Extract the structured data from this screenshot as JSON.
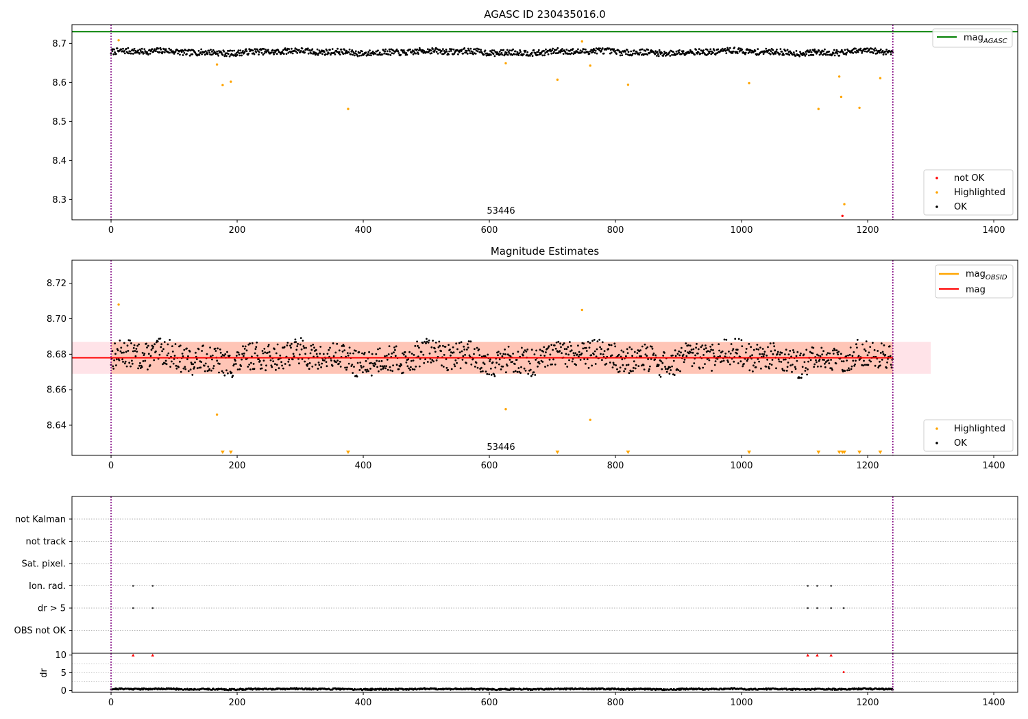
{
  "chart_data": [
    {
      "type": "scatter",
      "title": "AGASC ID 230435016.0",
      "xlim": [
        -62,
        1438
      ],
      "ylim": [
        8.248,
        8.748
      ],
      "xticks": [
        0,
        200,
        400,
        600,
        800,
        1000,
        1200,
        1400
      ],
      "yticks": [
        8.3,
        8.4,
        8.5,
        8.6,
        8.7
      ],
      "annotation": "53446",
      "vlines": [
        0,
        1240
      ],
      "hlines": [
        {
          "name": "mag_AGASC",
          "y": 8.73,
          "color": "#008000"
        }
      ],
      "legend_lines": [
        {
          "label": "mag",
          "sub": "AGASC",
          "color": "#008000"
        }
      ],
      "legend_points": [
        {
          "label": "not OK",
          "color": "#ff0000"
        },
        {
          "label": "Highlighted",
          "color": "#ffa500"
        },
        {
          "label": "OK",
          "color": "#000000"
        }
      ],
      "series": [
        {
          "name": "OK",
          "color": "#000000",
          "count": 1240,
          "x_range": [
            0,
            1240
          ],
          "baseline": 8.678,
          "scatter": 0.011
        },
        {
          "name": "Highlighted",
          "color": "#ffa500",
          "x": [
            12,
            168,
            177,
            190,
            376,
            626,
            708,
            747,
            760,
            820,
            1012,
            1122,
            1155,
            1158,
            1163,
            1187,
            1220
          ],
          "y": [
            8.708,
            8.646,
            8.593,
            8.602,
            8.532,
            8.649,
            8.607,
            8.705,
            8.643,
            8.594,
            8.598,
            8.532,
            8.615,
            8.563,
            8.288,
            8.535,
            8.611
          ]
        },
        {
          "name": "not OK",
          "color": "#ff0000",
          "x": [
            1160
          ],
          "y": [
            8.258
          ]
        }
      ]
    },
    {
      "type": "scatter",
      "title": "Magnitude Estimates",
      "xlim": [
        -62,
        1438
      ],
      "ylim": [
        8.623,
        8.733
      ],
      "xticks": [
        0,
        200,
        400,
        600,
        800,
        1000,
        1200,
        1400
      ],
      "yticks": [
        8.64,
        8.66,
        8.68,
        8.7,
        8.72
      ],
      "annotation": "53446",
      "vlines": [
        0,
        1240
      ],
      "bands": [
        {
          "name": "mag_OBSID range",
          "x": [
            -62,
            1300
          ],
          "y": [
            8.669,
            8.687
          ],
          "color": "#ffc0cb"
        },
        {
          "name": "mag_OBSID range",
          "x": [
            0,
            1240
          ],
          "y": [
            8.669,
            8.687
          ],
          "color": "#ffa07a"
        }
      ],
      "hlines": [
        {
          "name": "mag",
          "y": 8.678,
          "color": "#ff0000",
          "x": [
            -62,
            1240
          ]
        }
      ],
      "legend_lines": [
        {
          "label": "mag",
          "sub": "OBSID",
          "color": "#ffa500"
        },
        {
          "label": "mag",
          "sub": "",
          "color": "#ff0000"
        }
      ],
      "legend_points": [
        {
          "label": "Highlighted",
          "color": "#ffa500"
        },
        {
          "label": "OK",
          "color": "#000000"
        }
      ],
      "out_of_range_markers_x": [
        177,
        190,
        376,
        708,
        820,
        1012,
        1122,
        1155,
        1160,
        1163,
        1187,
        1220
      ],
      "series": [
        {
          "name": "OK",
          "color": "#000000",
          "count": 1240,
          "x_range": [
            0,
            1240
          ],
          "baseline": 8.678,
          "scatter": 0.011
        },
        {
          "name": "Highlighted",
          "color": "#ffa500",
          "x": [
            12,
            168,
            626,
            747,
            760
          ],
          "y": [
            8.708,
            8.646,
            8.649,
            8.705,
            8.643
          ]
        }
      ]
    },
    {
      "type": "scatter",
      "title": "",
      "xlim": [
        -62,
        1438
      ],
      "categories": [
        "not Kalman",
        "not track",
        "Sat. pixel.",
        "Ion. rad.",
        "dr > 5",
        "OBS not OK"
      ],
      "vlines": [
        0,
        1240
      ],
      "flags": [
        {
          "category": "Ion. rad.",
          "x": [
            35,
            66,
            1105,
            1120,
            1142
          ]
        },
        {
          "category": "dr > 5",
          "x": [
            35,
            66,
            1105,
            1120,
            1142,
            1162
          ]
        }
      ]
    },
    {
      "type": "scatter",
      "title": "",
      "ylabel": "dr",
      "xlim": [
        -62,
        1438
      ],
      "ylim": [
        -0.5,
        10.5
      ],
      "xticks": [
        0,
        200,
        400,
        600,
        800,
        1000,
        1200,
        1400
      ],
      "yticks": [
        0,
        5,
        10
      ],
      "vlines": [
        0,
        1240
      ],
      "series": [
        {
          "name": "OK",
          "color": "#000000",
          "count": 1240,
          "x_range": [
            0,
            1240
          ],
          "baseline": 0.4,
          "scatter": 0.3
        },
        {
          "name": "capped",
          "color": "#ff0000",
          "marker": "triangle",
          "x": [
            35,
            66,
            1105,
            1120,
            1142
          ],
          "y": [
            10,
            10,
            10,
            10,
            10
          ]
        },
        {
          "name": "dr > 5",
          "color": "#ff0000",
          "x": [
            1162
          ],
          "y": [
            5.2
          ]
        }
      ]
    }
  ]
}
